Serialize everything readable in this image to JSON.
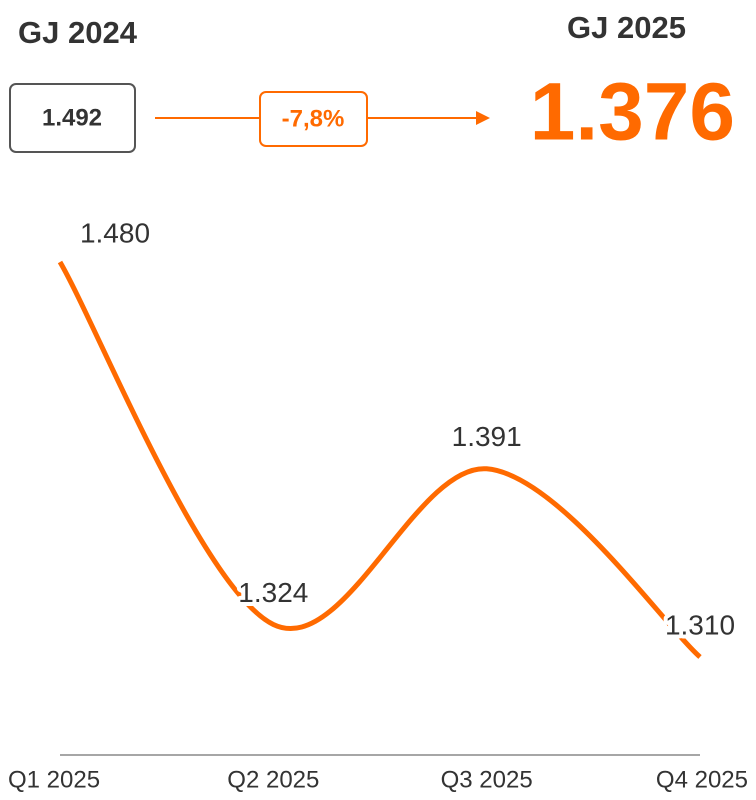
{
  "header": {
    "previous_label": "GJ 2024",
    "previous_value": "1.492",
    "change": "-7,8%",
    "current_label": "GJ 2025",
    "current_value": "1.376"
  },
  "chart_data": {
    "type": "line",
    "categories": [
      "Q1 2025",
      "Q2 2025",
      "Q3 2025",
      "Q4 2025"
    ],
    "values": [
      1480,
      1324,
      1391,
      1310
    ],
    "value_labels": [
      "1.480",
      "1.324",
      "1.391",
      "1.310"
    ],
    "color": "#ff6a00"
  }
}
